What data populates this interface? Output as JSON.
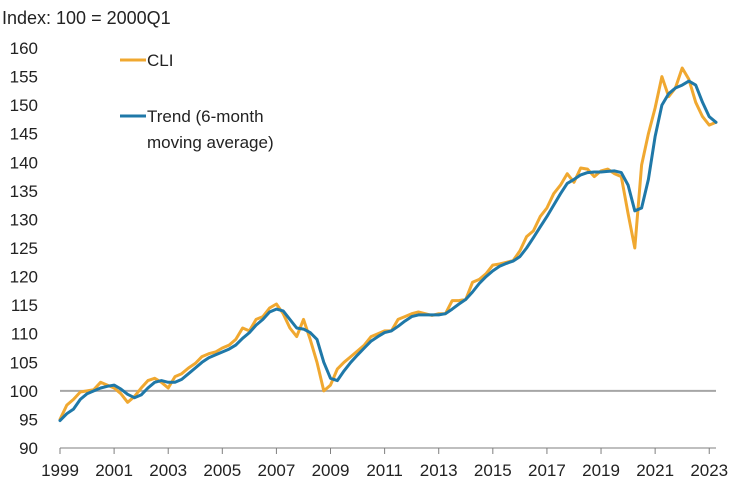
{
  "chart_data": {
    "type": "line",
    "unit_label": "Index: 100 = 2000Q1",
    "ylim": [
      90,
      160
    ],
    "y_ticks": [
      90,
      95,
      100,
      105,
      110,
      115,
      120,
      125,
      130,
      135,
      140,
      145,
      150,
      155,
      160
    ],
    "xlim": [
      1999,
      2023.25
    ],
    "x_ticks": [
      1999,
      2001,
      2003,
      2005,
      2007,
      2009,
      2011,
      2013,
      2015,
      2017,
      2019,
      2021,
      2023
    ],
    "grid": false,
    "reference_line": 100,
    "reference_line_color": "#a6a6a6",
    "legend": {
      "placement": "top-left",
      "items": [
        {
          "series": 0,
          "lines": [
            "CLI"
          ]
        },
        {
          "series": 1,
          "lines": [
            "Trend (6-month",
            "moving average)"
          ]
        }
      ]
    },
    "series": [
      {
        "name": "CLI",
        "color": "#f0a830",
        "points": [
          [
            1999.0,
            95.0
          ],
          [
            1999.25,
            97.5
          ],
          [
            1999.5,
            98.5
          ],
          [
            1999.75,
            99.8
          ],
          [
            2000.0,
            100.0
          ],
          [
            2000.25,
            100.2
          ],
          [
            2000.5,
            101.5
          ],
          [
            2000.75,
            101.0
          ],
          [
            2001.0,
            100.5
          ],
          [
            2001.25,
            99.5
          ],
          [
            2001.5,
            98.0
          ],
          [
            2001.75,
            99.0
          ],
          [
            2002.0,
            100.5
          ],
          [
            2002.25,
            101.8
          ],
          [
            2002.5,
            102.2
          ],
          [
            2002.75,
            101.5
          ],
          [
            2003.0,
            100.5
          ],
          [
            2003.25,
            102.5
          ],
          [
            2003.5,
            103.0
          ],
          [
            2003.75,
            104.0
          ],
          [
            2004.0,
            104.8
          ],
          [
            2004.25,
            106.0
          ],
          [
            2004.5,
            106.5
          ],
          [
            2004.75,
            106.8
          ],
          [
            2005.0,
            107.5
          ],
          [
            2005.25,
            108.0
          ],
          [
            2005.5,
            109.0
          ],
          [
            2005.75,
            111.0
          ],
          [
            2006.0,
            110.5
          ],
          [
            2006.25,
            112.5
          ],
          [
            2006.5,
            113.0
          ],
          [
            2006.75,
            114.5
          ],
          [
            2007.0,
            115.2
          ],
          [
            2007.25,
            113.5
          ],
          [
            2007.5,
            111.0
          ],
          [
            2007.75,
            109.5
          ],
          [
            2008.0,
            112.5
          ],
          [
            2008.25,
            109.0
          ],
          [
            2008.5,
            105.0
          ],
          [
            2008.75,
            100.0
          ],
          [
            2009.0,
            101.0
          ],
          [
            2009.25,
            103.8
          ],
          [
            2009.5,
            105.0
          ],
          [
            2009.75,
            106.0
          ],
          [
            2010.0,
            107.0
          ],
          [
            2010.25,
            108.0
          ],
          [
            2010.5,
            109.5
          ],
          [
            2010.75,
            110.0
          ],
          [
            2011.0,
            110.5
          ],
          [
            2011.25,
            110.5
          ],
          [
            2011.5,
            112.5
          ],
          [
            2011.75,
            113.0
          ],
          [
            2012.0,
            113.5
          ],
          [
            2012.25,
            113.8
          ],
          [
            2012.5,
            113.5
          ],
          [
            2012.75,
            113.2
          ],
          [
            2013.0,
            113.5
          ],
          [
            2013.25,
            113.5
          ],
          [
            2013.5,
            115.8
          ],
          [
            2013.75,
            115.8
          ],
          [
            2014.0,
            116.0
          ],
          [
            2014.25,
            119.0
          ],
          [
            2014.5,
            119.5
          ],
          [
            2014.75,
            120.5
          ],
          [
            2015.0,
            122.0
          ],
          [
            2015.25,
            122.2
          ],
          [
            2015.5,
            122.5
          ],
          [
            2015.75,
            122.8
          ],
          [
            2016.0,
            124.5
          ],
          [
            2016.25,
            127.0
          ],
          [
            2016.5,
            128.0
          ],
          [
            2016.75,
            130.5
          ],
          [
            2017.0,
            132.0
          ],
          [
            2017.25,
            134.5
          ],
          [
            2017.5,
            136.0
          ],
          [
            2017.75,
            138.0
          ],
          [
            2018.0,
            136.5
          ],
          [
            2018.25,
            139.0
          ],
          [
            2018.5,
            138.8
          ],
          [
            2018.75,
            137.5
          ],
          [
            2019.0,
            138.5
          ],
          [
            2019.25,
            138.8
          ],
          [
            2019.5,
            138.0
          ],
          [
            2019.75,
            137.5
          ],
          [
            2020.0,
            131.0
          ],
          [
            2020.25,
            125.0
          ],
          [
            2020.5,
            139.5
          ],
          [
            2020.75,
            145.0
          ],
          [
            2021.0,
            149.5
          ],
          [
            2021.25,
            155.0
          ],
          [
            2021.5,
            151.5
          ],
          [
            2021.75,
            153.0
          ],
          [
            2022.0,
            156.5
          ],
          [
            2022.25,
            154.5
          ],
          [
            2022.5,
            150.5
          ],
          [
            2022.75,
            148.0
          ],
          [
            2023.0,
            146.5
          ],
          [
            2023.25,
            147.0
          ]
        ]
      },
      {
        "name": "Trend (6-month moving average)",
        "color": "#1f78a8",
        "points": [
          [
            1999.0,
            94.8
          ],
          [
            1999.25,
            96.0
          ],
          [
            1999.5,
            96.8
          ],
          [
            1999.75,
            98.5
          ],
          [
            2000.0,
            99.5
          ],
          [
            2000.25,
            100.0
          ],
          [
            2000.5,
            100.5
          ],
          [
            2000.75,
            100.8
          ],
          [
            2001.0,
            101.0
          ],
          [
            2001.25,
            100.3
          ],
          [
            2001.5,
            99.4
          ],
          [
            2001.75,
            98.8
          ],
          [
            2002.0,
            99.3
          ],
          [
            2002.25,
            100.5
          ],
          [
            2002.5,
            101.5
          ],
          [
            2002.75,
            101.8
          ],
          [
            2003.0,
            101.5
          ],
          [
            2003.25,
            101.5
          ],
          [
            2003.5,
            102.0
          ],
          [
            2003.75,
            103.0
          ],
          [
            2004.0,
            104.0
          ],
          [
            2004.25,
            105.0
          ],
          [
            2004.5,
            105.8
          ],
          [
            2004.75,
            106.3
          ],
          [
            2005.0,
            106.8
          ],
          [
            2005.25,
            107.3
          ],
          [
            2005.5,
            108.0
          ],
          [
            2005.75,
            109.2
          ],
          [
            2006.0,
            110.2
          ],
          [
            2006.25,
            111.5
          ],
          [
            2006.5,
            112.5
          ],
          [
            2006.75,
            113.8
          ],
          [
            2007.0,
            114.3
          ],
          [
            2007.25,
            114.0
          ],
          [
            2007.5,
            112.5
          ],
          [
            2007.75,
            111.0
          ],
          [
            2008.0,
            110.8
          ],
          [
            2008.25,
            110.2
          ],
          [
            2008.5,
            109.0
          ],
          [
            2008.75,
            105.0
          ],
          [
            2009.0,
            102.2
          ],
          [
            2009.25,
            101.8
          ],
          [
            2009.5,
            103.5
          ],
          [
            2009.75,
            105.0
          ],
          [
            2010.0,
            106.3
          ],
          [
            2010.25,
            107.5
          ],
          [
            2010.5,
            108.7
          ],
          [
            2010.75,
            109.5
          ],
          [
            2011.0,
            110.2
          ],
          [
            2011.25,
            110.5
          ],
          [
            2011.5,
            111.3
          ],
          [
            2011.75,
            112.2
          ],
          [
            2012.0,
            113.0
          ],
          [
            2012.25,
            113.3
          ],
          [
            2012.5,
            113.3
          ],
          [
            2012.75,
            113.3
          ],
          [
            2013.0,
            113.3
          ],
          [
            2013.25,
            113.5
          ],
          [
            2013.5,
            114.3
          ],
          [
            2013.75,
            115.2
          ],
          [
            2014.0,
            116.0
          ],
          [
            2014.25,
            117.3
          ],
          [
            2014.5,
            118.8
          ],
          [
            2014.75,
            120.0
          ],
          [
            2015.0,
            121.0
          ],
          [
            2015.25,
            121.8
          ],
          [
            2015.5,
            122.3
          ],
          [
            2015.75,
            122.7
          ],
          [
            2016.0,
            123.5
          ],
          [
            2016.25,
            125.0
          ],
          [
            2016.5,
            126.8
          ],
          [
            2016.75,
            128.7
          ],
          [
            2017.0,
            130.5
          ],
          [
            2017.25,
            132.5
          ],
          [
            2017.5,
            134.5
          ],
          [
            2017.75,
            136.3
          ],
          [
            2018.0,
            137.0
          ],
          [
            2018.25,
            137.8
          ],
          [
            2018.5,
            138.2
          ],
          [
            2018.75,
            138.3
          ],
          [
            2019.0,
            138.3
          ],
          [
            2019.25,
            138.4
          ],
          [
            2019.5,
            138.5
          ],
          [
            2019.75,
            138.2
          ],
          [
            2020.0,
            136.0
          ],
          [
            2020.25,
            131.5
          ],
          [
            2020.5,
            132.0
          ],
          [
            2020.75,
            137.0
          ],
          [
            2021.0,
            144.5
          ],
          [
            2021.25,
            150.0
          ],
          [
            2021.5,
            152.0
          ],
          [
            2021.75,
            153.0
          ],
          [
            2022.0,
            153.5
          ],
          [
            2022.25,
            154.2
          ],
          [
            2022.5,
            153.5
          ],
          [
            2022.75,
            150.5
          ],
          [
            2023.0,
            148.0
          ],
          [
            2023.25,
            147.0
          ]
        ]
      }
    ]
  }
}
